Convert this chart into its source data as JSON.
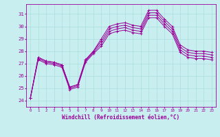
{
  "xlabel": "Windchill (Refroidissement éolien,°C)",
  "background_color": "#c8eef0",
  "line_color": "#990099",
  "grid_color": "#aadddd",
  "xlim": [
    -0.5,
    23.5
  ],
  "ylim": [
    23.5,
    31.8
  ],
  "xticks": [
    0,
    1,
    2,
    3,
    4,
    5,
    6,
    7,
    8,
    9,
    10,
    11,
    12,
    13,
    14,
    15,
    16,
    17,
    18,
    19,
    20,
    21,
    22,
    23
  ],
  "yticks": [
    24,
    25,
    26,
    27,
    28,
    29,
    30,
    31
  ],
  "series": [
    [
      24.2,
      27.5,
      27.2,
      27.1,
      26.9,
      25.1,
      25.3,
      27.3,
      28.0,
      29.0,
      30.0,
      30.2,
      30.3,
      30.1,
      30.0,
      31.3,
      31.3,
      30.6,
      30.0,
      28.5,
      28.1,
      28.0,
      28.0,
      27.9
    ],
    [
      24.2,
      27.5,
      27.2,
      27.1,
      26.9,
      25.1,
      25.3,
      27.3,
      28.0,
      28.8,
      29.8,
      30.0,
      30.1,
      29.9,
      29.8,
      31.1,
      31.1,
      30.4,
      29.8,
      28.3,
      27.9,
      27.8,
      27.8,
      27.7
    ],
    [
      24.2,
      27.4,
      27.1,
      27.0,
      26.8,
      25.0,
      25.2,
      27.2,
      27.9,
      28.6,
      29.6,
      29.8,
      29.9,
      29.7,
      29.6,
      30.9,
      30.9,
      30.2,
      29.6,
      28.1,
      27.7,
      27.6,
      27.6,
      27.5
    ],
    [
      24.2,
      27.3,
      27.0,
      26.9,
      26.7,
      24.9,
      25.1,
      27.1,
      27.8,
      28.4,
      29.4,
      29.6,
      29.7,
      29.5,
      29.4,
      30.7,
      30.7,
      30.0,
      29.4,
      27.9,
      27.5,
      27.4,
      27.4,
      27.3
    ]
  ]
}
